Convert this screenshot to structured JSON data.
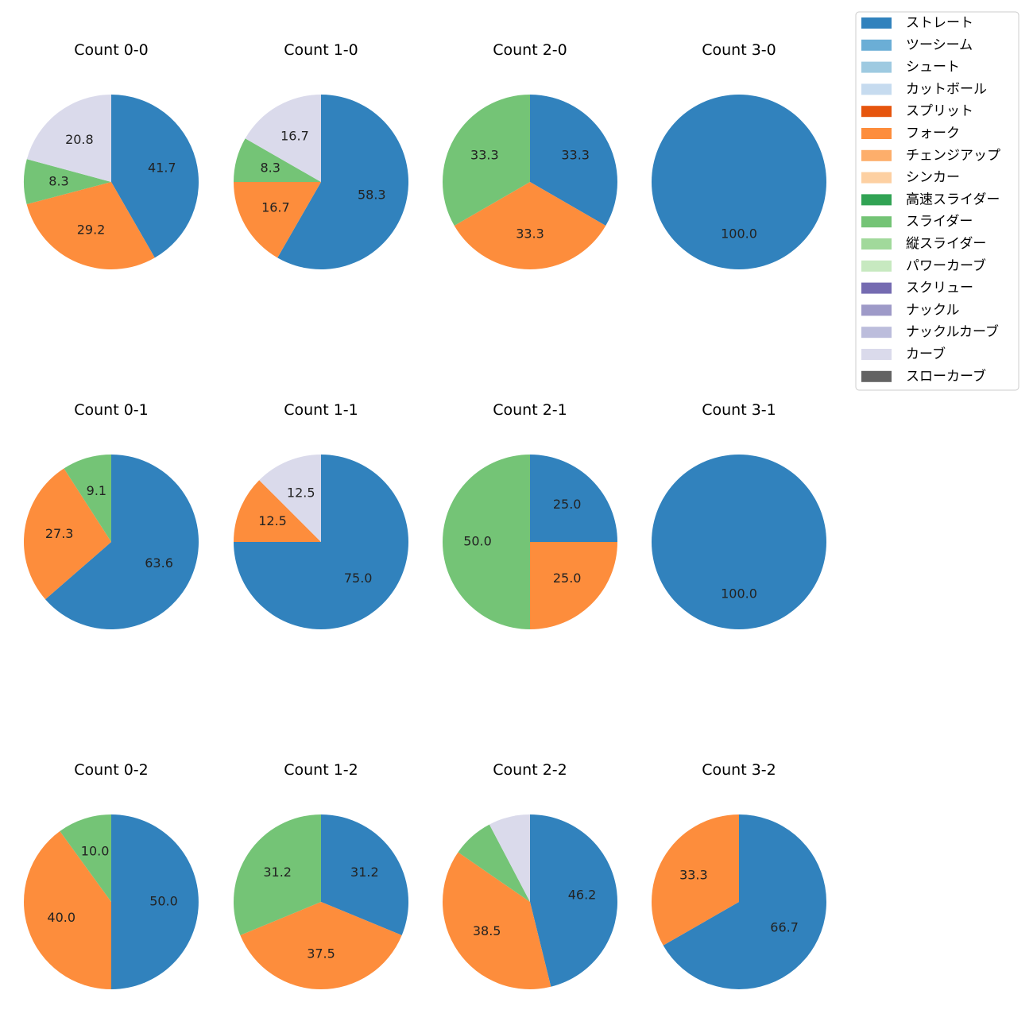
{
  "chart_data": {
    "type": "pie",
    "legend": {
      "placement": "top-right",
      "entries": [
        {
          "name": "ストレート",
          "color": "#3182bd"
        },
        {
          "name": "ツーシーム",
          "color": "#6baed6"
        },
        {
          "name": "シュート",
          "color": "#9ecae1"
        },
        {
          "name": "カットボール",
          "color": "#c6dbef"
        },
        {
          "name": "スプリット",
          "color": "#e6550d"
        },
        {
          "name": "フォーク",
          "color": "#fd8d3c"
        },
        {
          "name": "チェンジアップ",
          "color": "#fdae6b"
        },
        {
          "name": "シンカー",
          "color": "#fdd0a2"
        },
        {
          "name": "高速スライダー",
          "color": "#31a354"
        },
        {
          "name": "スライダー",
          "color": "#74c476"
        },
        {
          "name": "縦スライダー",
          "color": "#a1d99b"
        },
        {
          "name": "パワーカーブ",
          "color": "#c7e9c0"
        },
        {
          "name": "スクリュー",
          "color": "#756bb1"
        },
        {
          "name": "ナックル",
          "color": "#9e9ac8"
        },
        {
          "name": "ナックルカーブ",
          "color": "#bcbddc"
        },
        {
          "name": "カーブ",
          "color": "#dadaeb"
        },
        {
          "name": "スローカーブ",
          "color": "#636363"
        }
      ]
    },
    "pies": [
      {
        "title": "Count 0-0",
        "slices": [
          {
            "pitch": "ストレート",
            "value": 41.7,
            "label": "41.7"
          },
          {
            "pitch": "フォーク",
            "value": 29.2,
            "label": "29.2"
          },
          {
            "pitch": "スライダー",
            "value": 8.3,
            "label": "8.3"
          },
          {
            "pitch": "カーブ",
            "value": 20.8,
            "label": "20.8"
          }
        ]
      },
      {
        "title": "Count 1-0",
        "slices": [
          {
            "pitch": "ストレート",
            "value": 58.3,
            "label": "58.3"
          },
          {
            "pitch": "フォーク",
            "value": 16.7,
            "label": "16.7"
          },
          {
            "pitch": "スライダー",
            "value": 8.3,
            "label": "8.3"
          },
          {
            "pitch": "カーブ",
            "value": 16.7,
            "label": "16.7"
          }
        ]
      },
      {
        "title": "Count 2-0",
        "slices": [
          {
            "pitch": "ストレート",
            "value": 33.3,
            "label": "33.3"
          },
          {
            "pitch": "フォーク",
            "value": 33.3,
            "label": "33.3"
          },
          {
            "pitch": "スライダー",
            "value": 33.3,
            "label": "33.3"
          }
        ]
      },
      {
        "title": "Count 3-0",
        "slices": [
          {
            "pitch": "ストレート",
            "value": 100.0,
            "label": "100.0"
          }
        ]
      },
      {
        "title": "Count 0-1",
        "slices": [
          {
            "pitch": "ストレート",
            "value": 63.6,
            "label": "63.6"
          },
          {
            "pitch": "フォーク",
            "value": 27.3,
            "label": "27.3"
          },
          {
            "pitch": "スライダー",
            "value": 9.1,
            "label": "9.1"
          }
        ]
      },
      {
        "title": "Count 1-1",
        "slices": [
          {
            "pitch": "ストレート",
            "value": 75.0,
            "label": "75.0"
          },
          {
            "pitch": "フォーク",
            "value": 12.5,
            "label": "12.5"
          },
          {
            "pitch": "カーブ",
            "value": 12.5,
            "label": "12.5"
          }
        ]
      },
      {
        "title": "Count 2-1",
        "slices": [
          {
            "pitch": "ストレート",
            "value": 25.0,
            "label": "25.0"
          },
          {
            "pitch": "フォーク",
            "value": 25.0,
            "label": "25.0"
          },
          {
            "pitch": "スライダー",
            "value": 50.0,
            "label": "50.0"
          }
        ]
      },
      {
        "title": "Count 3-1",
        "slices": [
          {
            "pitch": "ストレート",
            "value": 100.0,
            "label": "100.0"
          }
        ]
      },
      {
        "title": "Count 0-2",
        "slices": [
          {
            "pitch": "ストレート",
            "value": 50.0,
            "label": "50.0"
          },
          {
            "pitch": "フォーク",
            "value": 40.0,
            "label": "40.0"
          },
          {
            "pitch": "スライダー",
            "value": 10.0,
            "label": "10.0"
          }
        ]
      },
      {
        "title": "Count 1-2",
        "slices": [
          {
            "pitch": "ストレート",
            "value": 31.2,
            "label": "31.2"
          },
          {
            "pitch": "フォーク",
            "value": 37.5,
            "label": "37.5"
          },
          {
            "pitch": "スライダー",
            "value": 31.2,
            "label": "31.2"
          }
        ]
      },
      {
        "title": "Count 2-2",
        "slices": [
          {
            "pitch": "ストレート",
            "value": 46.2,
            "label": "46.2"
          },
          {
            "pitch": "フォーク",
            "value": 38.5,
            "label": "38.5"
          },
          {
            "pitch": "スライダー",
            "value": 7.7,
            "label": null
          },
          {
            "pitch": "カーブ",
            "value": 7.7,
            "label": null
          }
        ]
      },
      {
        "title": "Count 3-2",
        "slices": [
          {
            "pitch": "ストレート",
            "value": 66.7,
            "label": "66.7"
          },
          {
            "pitch": "フォーク",
            "value": 33.3,
            "label": "33.3"
          }
        ]
      }
    ]
  }
}
